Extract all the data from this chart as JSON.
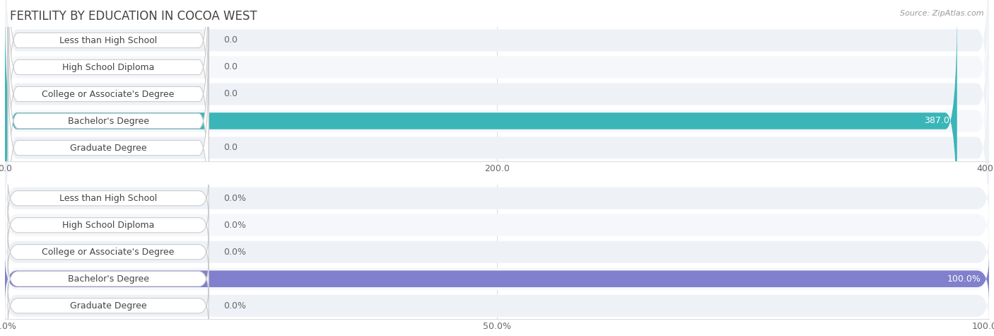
{
  "title": "FERTILITY BY EDUCATION IN COCOA WEST",
  "source": "Source: ZipAtlas.com",
  "categories": [
    "Less than High School",
    "High School Diploma",
    "College or Associate's Degree",
    "Bachelor's Degree",
    "Graduate Degree"
  ],
  "values_count": [
    0.0,
    0.0,
    0.0,
    387.0,
    0.0
  ],
  "values_pct": [
    0.0,
    0.0,
    0.0,
    100.0,
    0.0
  ],
  "max_count": 400.0,
  "max_pct": 100.0,
  "xticks_count": [
    0.0,
    200.0,
    400.0
  ],
  "xticks_pct": [
    0.0,
    50.0,
    100.0
  ],
  "xtick_labels_count": [
    "0.0",
    "200.0",
    "400.0"
  ],
  "xtick_labels_pct": [
    "0.0%",
    "50.0%",
    "100.0%"
  ],
  "bar_color_count": "#3ab5b8",
  "bar_color_pct": "#8080cc",
  "label_text_color": "#444444",
  "bar_value_color_normal": "#666666",
  "bar_value_color_full": "#ffffff",
  "row_bg_color": "#e8eef5",
  "row_bg_alt": "#f0f4f8",
  "title_color": "#444444",
  "source_color": "#999999",
  "grid_color": "#dddddd",
  "title_fontsize": 12,
  "label_fontsize": 9,
  "value_fontsize": 9,
  "tick_fontsize": 9
}
